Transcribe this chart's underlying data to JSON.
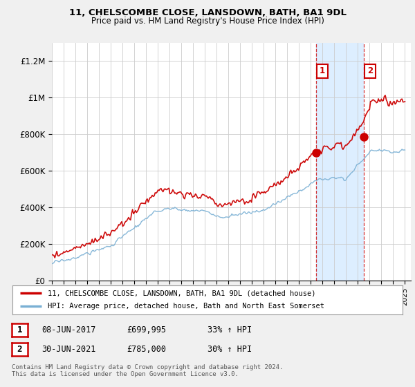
{
  "title_line1": "11, CHELSCOMBE CLOSE, LANSDOWN, BATH, BA1 9DL",
  "title_line2": "Price paid vs. HM Land Registry's House Price Index (HPI)",
  "ylabel_ticks": [
    "£0",
    "£200K",
    "£400K",
    "£600K",
    "£800K",
    "£1M",
    "£1.2M"
  ],
  "ytick_values": [
    0,
    200000,
    400000,
    600000,
    800000,
    1000000,
    1200000
  ],
  "ylim": [
    0,
    1300000
  ],
  "xlim_start": 1995.0,
  "xlim_end": 2025.5,
  "sale1_date": 2017.44,
  "sale1_price": 699995,
  "sale1_label": "1",
  "sale2_date": 2021.5,
  "sale2_price": 785000,
  "sale2_label": "2",
  "line_color_property": "#cc0000",
  "line_color_hpi": "#7ab0d4",
  "shade_color": "#ddeeff",
  "legend_property": "11, CHELSCOMBE CLOSE, LANSDOWN, BATH, BA1 9DL (detached house)",
  "legend_hpi": "HPI: Average price, detached house, Bath and North East Somerset",
  "table_row1": [
    "1",
    "08-JUN-2017",
    "£699,995",
    "33% ↑ HPI"
  ],
  "table_row2": [
    "2",
    "30-JUN-2021",
    "£785,000",
    "30% ↑ HPI"
  ],
  "footer": "Contains HM Land Registry data © Crown copyright and database right 2024.\nThis data is licensed under the Open Government Licence v3.0.",
  "bg_color": "#f0f0f0",
  "plot_bg_color": "#ffffff"
}
